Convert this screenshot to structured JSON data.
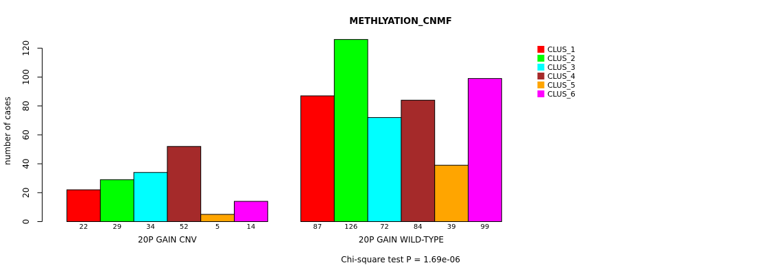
{
  "chart_data": {
    "type": "bar",
    "title": "METHLYATION_CNMF",
    "ylabel": "number of cases",
    "ylim": [
      0,
      125
    ],
    "yticks": [
      0,
      20,
      40,
      60,
      80,
      100,
      120
    ],
    "groups": [
      {
        "label": "20P GAIN CNV",
        "values": [
          22,
          29,
          34,
          52,
          5,
          14
        ]
      },
      {
        "label": "20P GAIN WILD-TYPE",
        "values": [
          87,
          126,
          72,
          84,
          39,
          99
        ]
      }
    ],
    "series": [
      {
        "name": "CLUS_1",
        "color": "#ff0000"
      },
      {
        "name": "CLUS_2",
        "color": "#00ff00"
      },
      {
        "name": "CLUS_3",
        "color": "#00ffff"
      },
      {
        "name": "CLUS_4",
        "color": "#a52a2a"
      },
      {
        "name": "CLUS_5",
        "color": "#ffa500"
      },
      {
        "name": "CLUS_6",
        "color": "#ff00ff"
      }
    ],
    "legend_position": "top-right",
    "grid": false,
    "footnote": "Chi-square test P = 1.69e-06"
  }
}
